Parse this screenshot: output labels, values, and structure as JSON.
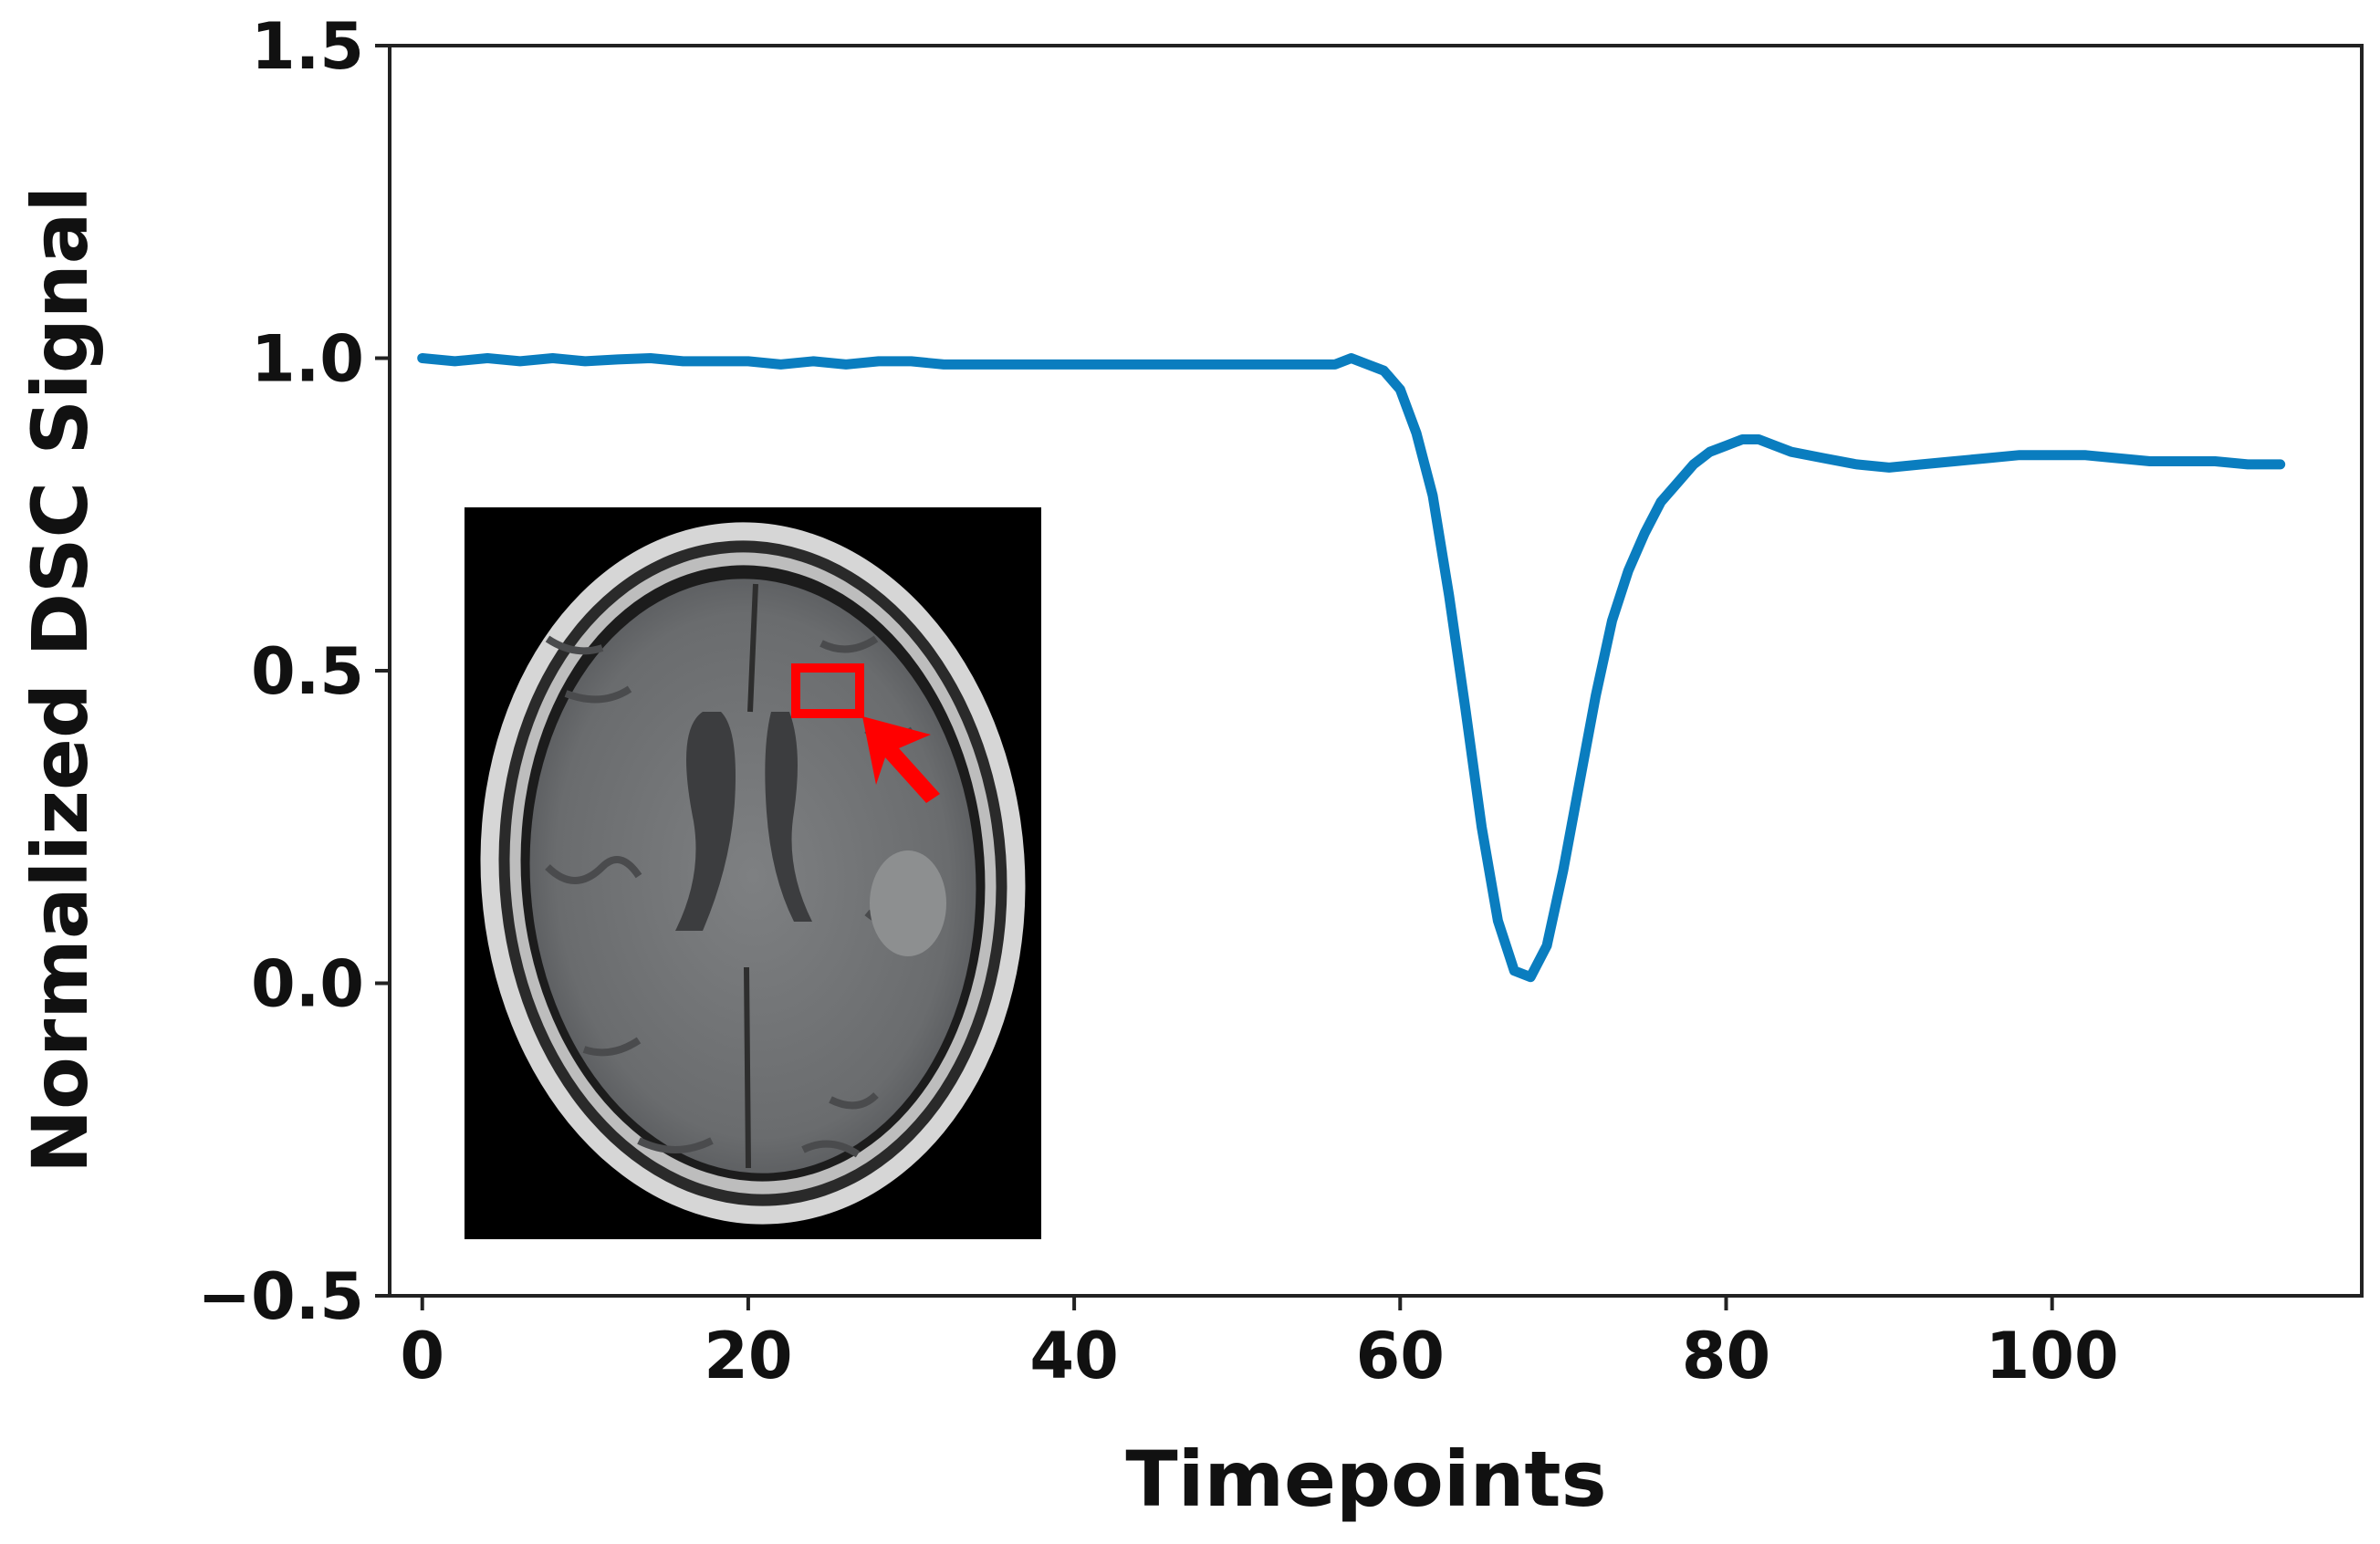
{
  "chart_data": {
    "type": "line",
    "xlabel": "Timepoints",
    "ylabel": "Normalized DSC Signal",
    "xlim": [
      -2,
      119
    ],
    "ylim": [
      -0.5,
      1.5
    ],
    "xticks": [
      0,
      20,
      40,
      60,
      80,
      100
    ],
    "yticks": [
      -0.5,
      0.0,
      0.5,
      1.0,
      1.5
    ],
    "xtick_labels": [
      "0",
      "20",
      "40",
      "60",
      "80",
      "100"
    ],
    "ytick_labels": [
      "−0.5",
      "0.0",
      "0.5",
      "1.0",
      "1.5"
    ],
    "grid": false,
    "series": [
      {
        "color": "#0a7dbf",
        "x": [
          0,
          2,
          4,
          6,
          8,
          10,
          12,
          14,
          16,
          18,
          20,
          22,
          24,
          26,
          28,
          30,
          32,
          34,
          36,
          38,
          40,
          42,
          44,
          46,
          48,
          50,
          52,
          54,
          56,
          57,
          58,
          59,
          60,
          61,
          62,
          63,
          64,
          65,
          66,
          67,
          68,
          69,
          70,
          71,
          72,
          73,
          74,
          75,
          76,
          77,
          78,
          79,
          80,
          81,
          82,
          83,
          84,
          86,
          88,
          90,
          92,
          94,
          96,
          98,
          100,
          102,
          104,
          106,
          108,
          110,
          112,
          114
        ],
        "y": [
          1.0,
          0.995,
          1.0,
          0.995,
          1.0,
          0.995,
          0.998,
          1.0,
          0.995,
          0.995,
          0.995,
          0.99,
          0.995,
          0.99,
          0.995,
          0.995,
          0.99,
          0.99,
          0.99,
          0.99,
          0.99,
          0.99,
          0.99,
          0.99,
          0.99,
          0.99,
          0.99,
          0.99,
          0.99,
          1.0,
          0.99,
          0.98,
          0.95,
          0.88,
          0.78,
          0.62,
          0.44,
          0.25,
          0.1,
          0.02,
          0.01,
          0.06,
          0.18,
          0.32,
          0.46,
          0.58,
          0.66,
          0.72,
          0.77,
          0.8,
          0.83,
          0.85,
          0.86,
          0.87,
          0.87,
          0.86,
          0.85,
          0.84,
          0.83,
          0.825,
          0.83,
          0.835,
          0.84,
          0.845,
          0.845,
          0.845,
          0.84,
          0.835,
          0.835,
          0.835,
          0.83,
          0.83
        ]
      }
    ],
    "inset": {
      "description_label": "axial brain MRI",
      "roi_color": "#ff0000"
    }
  }
}
